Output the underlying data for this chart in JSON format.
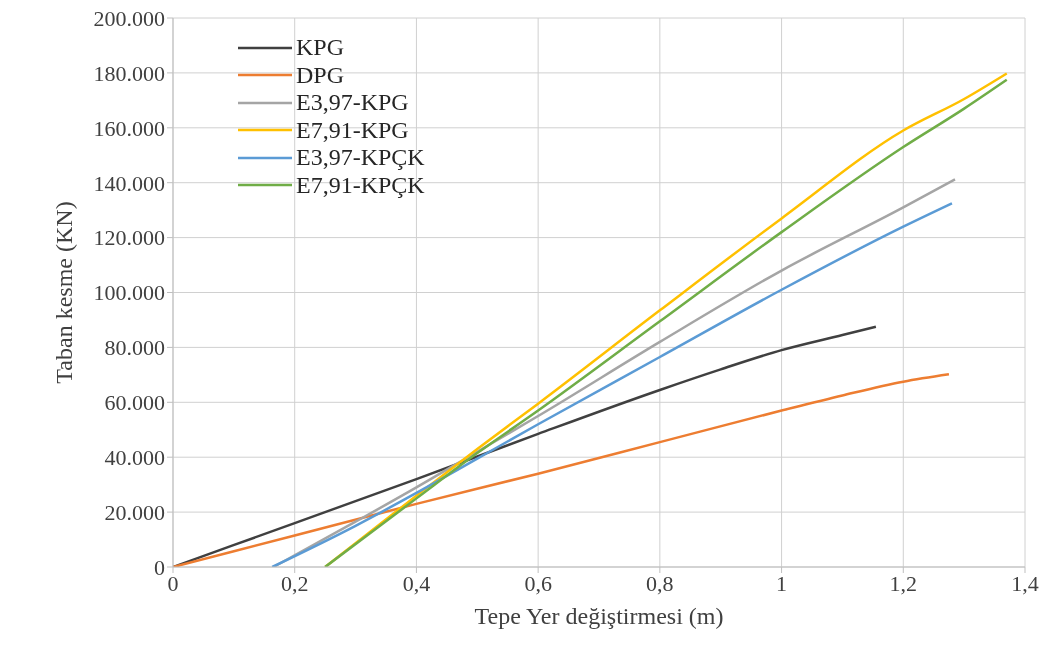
{
  "chart_data": {
    "type": "line",
    "xlabel": "Tepe Yer değiştirmesi (m)",
    "ylabel": "Taban kesme (KN)",
    "xlim": [
      0,
      1.4
    ],
    "xticks": [
      0,
      {
        "value": 0.2,
        "label": "0,2"
      },
      {
        "value": 0.4,
        "label": "0,4"
      },
      {
        "value": 0.6,
        "label": "0,6"
      },
      {
        "value": 0.8,
        "label": "0,8"
      },
      1,
      {
        "value": 1.2,
        "label": "1,2"
      },
      {
        "value": 1.4,
        "label": "1,4"
      }
    ],
    "ylim": [
      0,
      200000
    ],
    "yticks": [
      0,
      {
        "value": 20000,
        "label": "20.000"
      },
      {
        "value": 40000,
        "label": "40.000"
      },
      {
        "value": 60000,
        "label": "60.000"
      },
      {
        "value": 80000,
        "label": "80.000"
      },
      {
        "value": 100000,
        "label": "100.000"
      },
      {
        "value": 120000,
        "label": "120.000"
      },
      {
        "value": 140000,
        "label": "140.000"
      },
      {
        "value": 160000,
        "label": "160.000"
      },
      {
        "value": 180000,
        "label": "180.000"
      },
      {
        "value": 200000,
        "label": "200.000"
      }
    ],
    "grid": true,
    "legend": "top left",
    "marker": "none",
    "line_style": "solid",
    "series": [
      {
        "name": "KPG",
        "color": "#404040",
        "x": [
          0,
          0.2,
          0.4,
          0.6,
          0.8,
          0.9,
          1.0,
          1.1,
          1.155
        ],
        "values": [
          0,
          16000,
          32000,
          48500,
          64500,
          72000,
          79000,
          84500,
          87500
        ]
      },
      {
        "name": "DPG",
        "color": "#ed7d31",
        "x": [
          0,
          0.2,
          0.4,
          0.6,
          0.8,
          1.0,
          1.1,
          1.2,
          1.275
        ],
        "values": [
          0,
          11500,
          23000,
          34000,
          45500,
          57000,
          62500,
          67500,
          70200
        ]
      },
      {
        "name": "E3,97-KPG",
        "color": "#a5a5a5",
        "x": [
          0.165,
          0.3,
          0.4,
          0.5,
          0.6,
          0.8,
          1.0,
          1.2,
          1.285
        ],
        "values": [
          0,
          16500,
          29000,
          42000,
          55000,
          82000,
          108000,
          131000,
          141200
        ]
      },
      {
        "name": "E7,91-KPG",
        "color": "#ffc000",
        "x": [
          0.25,
          0.4,
          0.5,
          0.6,
          0.8,
          1.0,
          1.2,
          1.3,
          1.37
        ],
        "values": [
          0,
          26000,
          43000,
          59500,
          93500,
          127000,
          159000,
          170500,
          179800
        ]
      },
      {
        "name": "E3,97-KPÇK",
        "color": "#5b9bd5",
        "x": [
          0.163,
          0.3,
          0.4,
          0.5,
          0.6,
          0.8,
          1.0,
          1.2,
          1.28
        ],
        "values": [
          0,
          15000,
          27000,
          39500,
          52000,
          76500,
          101000,
          124000,
          132500
        ]
      },
      {
        "name": "E7,91-KPÇK",
        "color": "#70ad47",
        "x": [
          0.25,
          0.4,
          0.5,
          0.6,
          0.8,
          1.0,
          1.2,
          1.3,
          1.37
        ],
        "values": [
          0,
          25000,
          41500,
          57000,
          89500,
          122000,
          153000,
          167000,
          177500
        ]
      }
    ]
  }
}
